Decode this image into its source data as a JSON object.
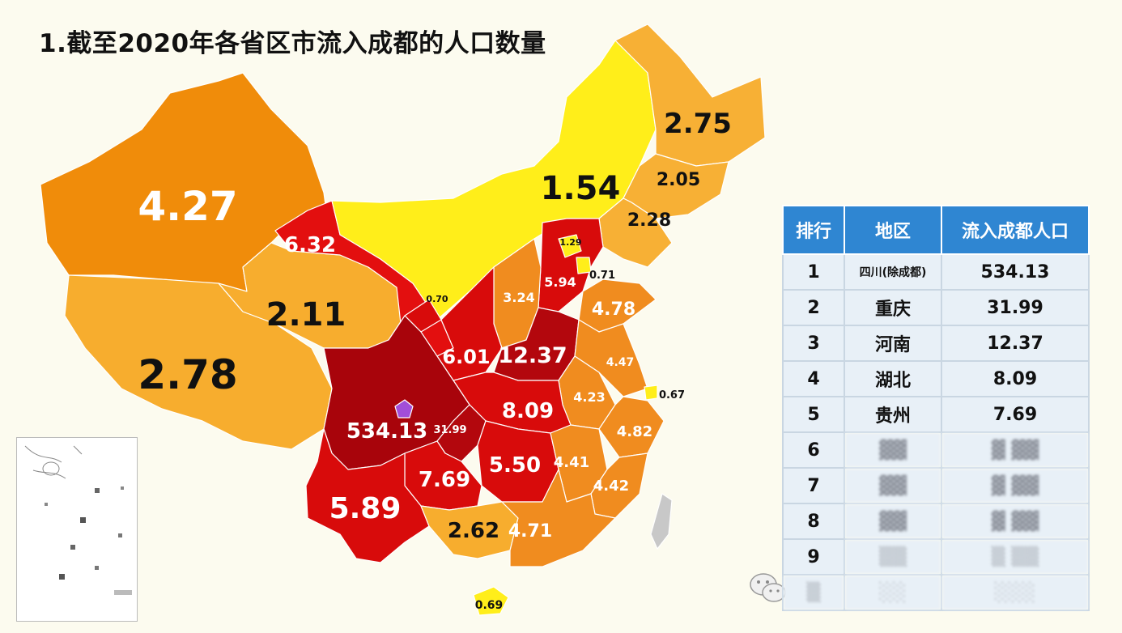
{
  "title": "1.截至2020年各省区市流入成都的人口数量",
  "colors": {
    "xinjiang": "#f08c0a",
    "tibet": "#f7ad2e",
    "qinghai": "#f7ad2e",
    "gansu_ningxia": "#e30f0f",
    "inner_mongolia": "#ffee1a",
    "northeast": "#f7b035",
    "sichuan": "#a8040b",
    "chongqing": "#b3070d",
    "central_red": "#d80b0b",
    "east_orange": "#f08c1f",
    "guangxi": "#f7ad2e",
    "hainan": "#ffee1a",
    "chengdu": "#a24ed8",
    "taiwan": "#c8c8c8",
    "table_header": "#2f86d2",
    "table_cell": "#e8f0f7"
  },
  "map_labels": {
    "xinjiang": "4.27",
    "tibet": "2.78",
    "qinghai": "2.11",
    "gansu": "6.32",
    "inner_mongolia": "1.54",
    "heilongjiang": "2.75",
    "jilin": "2.05",
    "liaoning": "2.28",
    "ningxia": "0.70",
    "beijing": "1.29",
    "tianjin": "0.71",
    "hebei": "5.94",
    "shanxi": "3.24",
    "shandong": "4.78",
    "shaanxi": "6.01",
    "henan": "12.37",
    "jiangsu": "4.47",
    "shanghai": "0.67",
    "anhui": "4.23",
    "hubei": "8.09",
    "zhejiang": "4.82",
    "sichuan": "534.13",
    "chongqing": "31.99",
    "hunan": "5.50",
    "jiangxi": "4.41",
    "fujian": "4.42",
    "guizhou": "7.69",
    "yunnan": "5.89",
    "guangxi": "2.62",
    "guangdong": "4.71",
    "hainan": "0.69"
  },
  "table": {
    "headers": [
      "排行",
      "地区",
      "流入成都人口"
    ],
    "rows": [
      {
        "rank": "1",
        "region": "四川(除成都)",
        "value": "534.13"
      },
      {
        "rank": "2",
        "region": "重庆",
        "value": "31.99"
      },
      {
        "rank": "3",
        "region": "河南",
        "value": "12.37"
      },
      {
        "rank": "4",
        "region": "湖北",
        "value": "8.09"
      },
      {
        "rank": "5",
        "region": "贵州",
        "value": "7.69"
      },
      {
        "rank": "6",
        "region": "",
        "value": ""
      },
      {
        "rank": "7",
        "region": "",
        "value": ""
      },
      {
        "rank": "8",
        "region": "",
        "value": ""
      },
      {
        "rank": "9",
        "region": "",
        "value": ""
      },
      {
        "rank": "",
        "region": "",
        "value": ""
      }
    ]
  }
}
